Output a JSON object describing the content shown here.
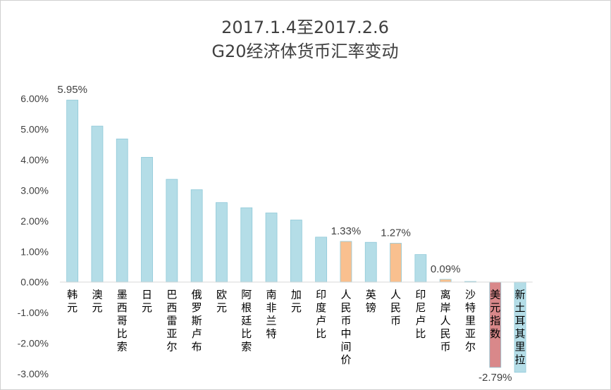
{
  "chart_data": {
    "type": "bar",
    "title": [
      "2017.1.4至2017.2.6",
      "G20经济体货币汇率变动"
    ],
    "xlabel": "",
    "ylabel": "",
    "ylim": [
      -3,
      6
    ],
    "yticks": [
      6,
      5,
      4,
      3,
      2,
      1,
      0,
      -1,
      -2,
      -3
    ],
    "ytick_labels": [
      "6.00%",
      "5.00%",
      "4.00%",
      "3.00%",
      "2.00%",
      "1.00%",
      "0.00%",
      "-1.00%",
      "-2.00%",
      "-3.00%"
    ],
    "grid": false,
    "legend": "none",
    "categories": [
      "韩元",
      "澳元",
      "墨西哥比索",
      "日元",
      "巴西雷亚尔",
      "俄罗斯卢布",
      "欧元",
      "阿根廷比索",
      "南非兰特",
      "加元",
      "印度卢比",
      "人民币中间价",
      "英镑",
      "人民币",
      "印尼卢比",
      "离岸人民币",
      "沙特里亚尔",
      "美元指数",
      "新土耳其里拉"
    ],
    "values": [
      5.95,
      5.1,
      4.68,
      4.08,
      3.36,
      3.02,
      2.6,
      2.43,
      2.26,
      2.03,
      1.47,
      1.33,
      1.3,
      1.27,
      0.9,
      0.09,
      0.02,
      -2.79,
      -2.95
    ],
    "bar_colors": [
      "#b4dde7",
      "#b4dde7",
      "#b4dde7",
      "#b4dde7",
      "#b4dde7",
      "#b4dde7",
      "#b4dde7",
      "#b4dde7",
      "#b4dde7",
      "#b4dde7",
      "#b4dde7",
      "#f9c08f",
      "#b4dde7",
      "#f9c08f",
      "#b4dde7",
      "#f9c08f",
      "#b4dde7",
      "#d9888a",
      "#b4dde7"
    ],
    "bar_stroke": "#8fc9d8",
    "data_labels": [
      {
        "index": 0,
        "text": "5.95%"
      },
      {
        "index": 11,
        "text": "1.33%"
      },
      {
        "index": 13,
        "text": "1.27%"
      },
      {
        "index": 15,
        "text": "0.09%"
      },
      {
        "index": 17,
        "text": "-2.79%"
      }
    ]
  }
}
